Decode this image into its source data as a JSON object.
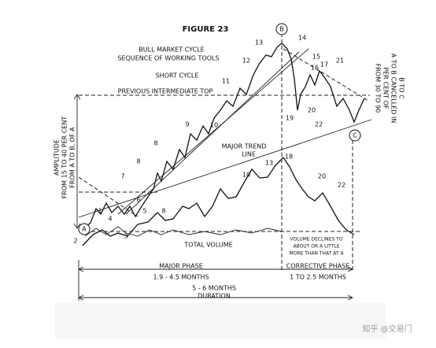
{
  "figure": {
    "title": "FIGURE 23",
    "subtitle_1": "BULL MARKET CYCLE",
    "subtitle_2": "SEQUENCE OF WORKING TOOLS",
    "short_cycle": "SHORT CYCLE",
    "previous_top": "PREVIOUS INTERMEDIATE TOP",
    "trend_line": [
      "MAJOR TREND",
      "LINE"
    ],
    "total_volume": "TOTAL VOLUME",
    "volume_note": [
      "VOLUME DECLINES TO",
      "ABOUT OR A LITTLE",
      "MORE THAN THAT AT A"
    ],
    "amplitude": [
      "AMPLITUDE",
      "FROM 15 TO 40 PER CENT",
      "FROM A TO B, OF A"
    ],
    "cancel_note": [
      "FROM 30 TO 90",
      "PER CENT OF",
      "A TO B CANCELLED IN",
      "B TO C"
    ],
    "points": [
      "A",
      "B",
      "C"
    ],
    "wave_labels": [
      "1",
      "2",
      "3",
      "4",
      "5",
      "6",
      "7",
      "8",
      "8",
      "8",
      "9",
      "10",
      "11",
      "12",
      "13",
      "14",
      "15",
      "16",
      "17",
      "19",
      "20",
      "21",
      "22",
      "10",
      "13",
      "18",
      "20",
      "22"
    ],
    "major_phase": [
      "MAJOR PHASE",
      "1.9 - 4.5 MONTHS"
    ],
    "corrective_phase": [
      "CORRECTIVE PHASE",
      "1 TO 2.5 MONTHS"
    ],
    "duration": [
      "5 - 6 MONTHS",
      "DURATION"
    ]
  },
  "watermark": "知乎 @交易门"
}
